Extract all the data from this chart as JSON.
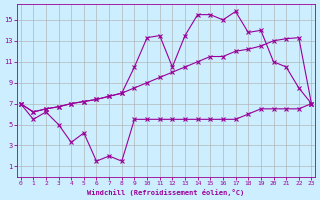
{
  "xlabel": "Windchill (Refroidissement éolien,°C)",
  "bg_color": "#cceeff",
  "grid_color": "#aaaaaa",
  "line_color": "#990099",
  "x_ticks": [
    0,
    1,
    2,
    3,
    4,
    5,
    6,
    7,
    8,
    9,
    10,
    11,
    12,
    13,
    14,
    15,
    16,
    17,
    18,
    19,
    20,
    21,
    22,
    23
  ],
  "y_ticks": [
    1,
    3,
    5,
    7,
    9,
    11,
    13,
    15
  ],
  "ylim": [
    0.0,
    16.5
  ],
  "xlim": [
    -0.3,
    23.3
  ],
  "line1_x": [
    0,
    1,
    2,
    3,
    4,
    5,
    6,
    7,
    8,
    9,
    10,
    11,
    12,
    13,
    14,
    15,
    16,
    17,
    18,
    19,
    20,
    21,
    22,
    23
  ],
  "line1_y": [
    7.0,
    5.5,
    6.2,
    5.0,
    3.3,
    4.2,
    1.5,
    2.0,
    1.5,
    5.5,
    5.5,
    5.5,
    5.5,
    5.5,
    5.5,
    5.5,
    5.5,
    5.5,
    6.0,
    6.5,
    6.5,
    6.5,
    6.5,
    7.0
  ],
  "line2_x": [
    0,
    1,
    2,
    3,
    4,
    5,
    6,
    7,
    8,
    9,
    10,
    11,
    12,
    13,
    14,
    15,
    16,
    17,
    18,
    19,
    20,
    21,
    22,
    23
  ],
  "line2_y": [
    7.0,
    6.2,
    6.5,
    6.7,
    7.0,
    7.2,
    7.4,
    7.7,
    8.0,
    8.5,
    9.0,
    9.5,
    10.0,
    10.5,
    11.0,
    11.5,
    11.5,
    12.0,
    12.2,
    12.5,
    13.0,
    13.2,
    13.3,
    7.0
  ],
  "line3_x": [
    0,
    1,
    2,
    3,
    4,
    5,
    6,
    7,
    8,
    9,
    10,
    11,
    12,
    13,
    14,
    15,
    16,
    17,
    18,
    19,
    20,
    21,
    22,
    23
  ],
  "line3_y": [
    7.0,
    6.2,
    6.5,
    6.7,
    7.0,
    7.2,
    7.4,
    7.7,
    8.0,
    10.5,
    13.3,
    13.5,
    10.5,
    13.5,
    15.5,
    15.5,
    15.0,
    15.8,
    13.8,
    14.0,
    11.0,
    10.5,
    8.5,
    7.0
  ],
  "figsize": [
    3.2,
    2.0
  ],
  "dpi": 100
}
